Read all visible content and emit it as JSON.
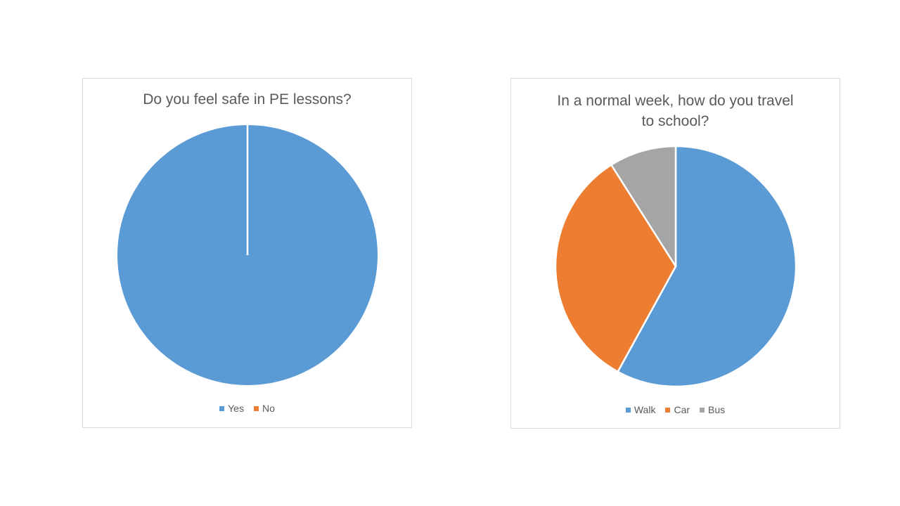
{
  "chart_data": [
    {
      "type": "pie",
      "title": "Do you feel safe in PE lessons?",
      "categories": [
        "Yes",
        "No"
      ],
      "values": [
        100,
        0
      ],
      "colors": [
        "#5b9bd5",
        "#ed7d31"
      ],
      "legend": "bottom"
    },
    {
      "type": "pie",
      "title_lines": [
        "In a normal week, how do you travel",
        "to school?"
      ],
      "categories": [
        "Walk",
        "Car",
        "Bus"
      ],
      "values": [
        58,
        33,
        9
      ],
      "colors": [
        "#5b9bd5",
        "#ed7d31",
        "#a5a5a5"
      ],
      "legend": "bottom"
    }
  ]
}
